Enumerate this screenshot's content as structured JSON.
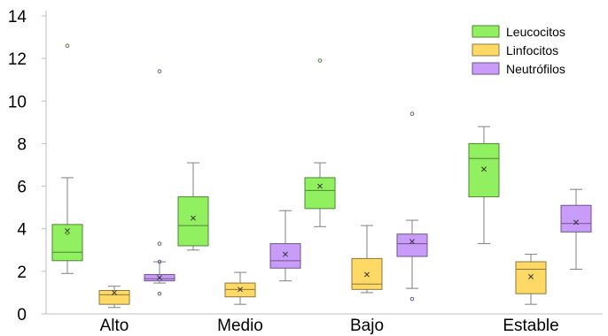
{
  "chart_data": {
    "type": "box",
    "title": "",
    "xlabel": "",
    "ylabel": "",
    "ylim": [
      0,
      14
    ],
    "yticks": [
      0,
      2,
      4,
      6,
      8,
      10,
      12,
      14
    ],
    "grid": false,
    "legend_position": "top-right",
    "categories": [
      "Alto",
      "Medio",
      "Bajo",
      "Estable"
    ],
    "series": [
      {
        "name": "Leucocitos",
        "color": "#90f060",
        "boxes": [
          {
            "min": 1.9,
            "q1": 2.5,
            "median": 2.9,
            "q3": 4.2,
            "max": 6.4,
            "mean": 3.9,
            "outliers": [
              3.8,
              12.6
            ]
          },
          {
            "min": 3.0,
            "q1": 3.2,
            "median": 4.15,
            "q3": 5.5,
            "max": 7.1,
            "mean": 4.5,
            "outliers": []
          },
          {
            "min": 4.1,
            "q1": 4.95,
            "median": 5.8,
            "q3": 6.4,
            "max": 7.1,
            "mean": 6.0,
            "outliers": [
              11.9
            ]
          },
          {
            "min": 3.3,
            "q1": 5.5,
            "median": 7.3,
            "q3": 8.0,
            "max": 8.8,
            "mean": 6.8,
            "outliers": []
          }
        ]
      },
      {
        "name": "Linfocitos",
        "color": "#ffd966",
        "boxes": [
          {
            "min": 0.3,
            "q1": 0.45,
            "median": 0.9,
            "q3": 1.1,
            "max": 1.3,
            "mean": 1.0,
            "outliers": []
          },
          {
            "min": 0.45,
            "q1": 0.8,
            "median": 1.15,
            "q3": 1.45,
            "max": 1.95,
            "mean": 1.15,
            "outliers": []
          },
          {
            "min": 1.0,
            "q1": 1.15,
            "median": 1.4,
            "q3": 2.6,
            "max": 4.15,
            "mean": 1.85,
            "outliers": []
          },
          {
            "min": 0.45,
            "q1": 0.95,
            "median": 2.1,
            "q3": 2.45,
            "max": 2.8,
            "mean": 1.75,
            "outliers": []
          }
        ]
      },
      {
        "name": "Neutrófilos",
        "color": "#c89cf8",
        "boxes": [
          {
            "min": 1.45,
            "q1": 1.55,
            "median": 1.65,
            "q3": 1.85,
            "max": 2.45,
            "mean": 1.7,
            "outliers": [
              0.95,
              2.45,
              3.3,
              11.4
            ]
          },
          {
            "min": 1.55,
            "q1": 2.15,
            "median": 2.5,
            "q3": 3.3,
            "max": 4.85,
            "mean": 2.8,
            "outliers": []
          },
          {
            "min": 1.2,
            "q1": 2.7,
            "median": 3.3,
            "q3": 3.75,
            "max": 4.4,
            "mean": 3.4,
            "outliers": [
              0.7,
              9.4
            ]
          },
          {
            "min": 2.1,
            "q1": 3.85,
            "median": 4.25,
            "q3": 5.1,
            "max": 5.85,
            "mean": 4.3,
            "outliers": []
          }
        ]
      }
    ]
  }
}
